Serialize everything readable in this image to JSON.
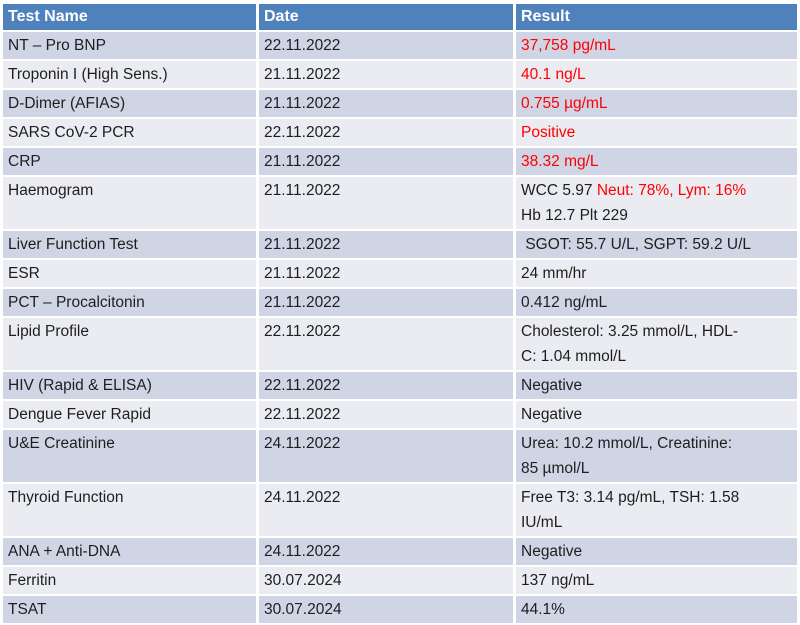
{
  "colors": {
    "header_bg": "#4F81BD",
    "header_text": "#FFFFFF",
    "band_dark": "#D0D5E5",
    "band_light": "#EAECF2",
    "result_alert": "#FF0000",
    "body_text": "#1E1E1E",
    "grid": "#FFFFFF"
  },
  "table": {
    "headers": [
      {
        "label": "Test Name"
      },
      {
        "label": "Date"
      },
      {
        "label": "Result"
      }
    ],
    "rows": [
      {
        "test": "NT – Pro BNP",
        "date": "22.11.2022",
        "result": [
          {
            "text": "37,758 pg/mL",
            "color": "red"
          }
        ]
      },
      {
        "test": "Troponin I (High Sens.)",
        "date": "21.11.2022",
        "result": [
          {
            "text": "40.1 ng/L",
            "color": "red"
          }
        ]
      },
      {
        "test": "D-Dimer (AFIAS)",
        "date": "21.11.2022",
        "result": [
          {
            "text": "0.755 µg/mL",
            "color": "red"
          }
        ]
      },
      {
        "test": "SARS CoV-2 PCR",
        "date": "22.11.2022",
        "result": [
          {
            "text": "Positive",
            "color": "red"
          }
        ]
      },
      {
        "test": "CRP",
        "date": "21.11.2022",
        "result": [
          {
            "text": "38.32 mg/L",
            "color": "red"
          }
        ]
      },
      {
        "test": "Haemogram",
        "date": "21.11.2022",
        "result": [
          {
            "text": "WCC 5.97 ",
            "color": "black"
          },
          {
            "text": "Neut: 78%, Lym: 16%",
            "color": "red"
          },
          {
            "text": "\nHb 12.7 Plt 229",
            "color": "black"
          }
        ]
      },
      {
        "test": "Liver Function Test",
        "date": "21.11.2022",
        "result": [
          {
            "text": " SGOT: 55.7 U/L, SGPT: 59.2 U/L",
            "color": "black"
          }
        ]
      },
      {
        "test": "ESR",
        "date": "21.11.2022",
        "result": [
          {
            "text": "24 mm/hr",
            "color": "black"
          }
        ]
      },
      {
        "test": "PCT – Procalcitonin",
        "date": "21.11.2022",
        "result": [
          {
            "text": "0.412 ng/mL",
            "color": "black"
          }
        ]
      },
      {
        "test": "Lipid Profile",
        "date": "22.11.2022",
        "result": [
          {
            "text": "Cholesterol: 3.25 mmol/L, HDL-\nC: 1.04 mmol/L",
            "color": "black"
          }
        ]
      },
      {
        "test": "HIV (Rapid & ELISA)",
        "date": "22.11.2022",
        "result": [
          {
            "text": "Negative",
            "color": "black"
          }
        ]
      },
      {
        "test": "Dengue Fever Rapid",
        "date": "22.11.2022",
        "result": [
          {
            "text": "Negative",
            "color": "black"
          }
        ]
      },
      {
        "test": "U&E Creatinine",
        "date": "24.11.2022",
        "result": [
          {
            "text": "Urea: 10.2 mmol/L, Creatinine:\n85 µmol/L",
            "color": "black"
          }
        ]
      },
      {
        "test": "Thyroid Function",
        "date": "24.11.2022",
        "result": [
          {
            "text": "Free T3: 3.14 pg/mL, TSH: 1.58\nIU/mL",
            "color": "black"
          }
        ]
      },
      {
        "test": "ANA + Anti-DNA",
        "date": "24.11.2022",
        "result": [
          {
            "text": "Negative",
            "color": "black"
          }
        ]
      },
      {
        "test": "Ferritin",
        "date": "30.07.2024",
        "result": [
          {
            "text": "137 ng/mL",
            "color": "black"
          }
        ]
      },
      {
        "test": "TSAT",
        "date": "30.07.2024",
        "result": [
          {
            "text": "44.1%",
            "color": "black"
          }
        ]
      }
    ]
  }
}
